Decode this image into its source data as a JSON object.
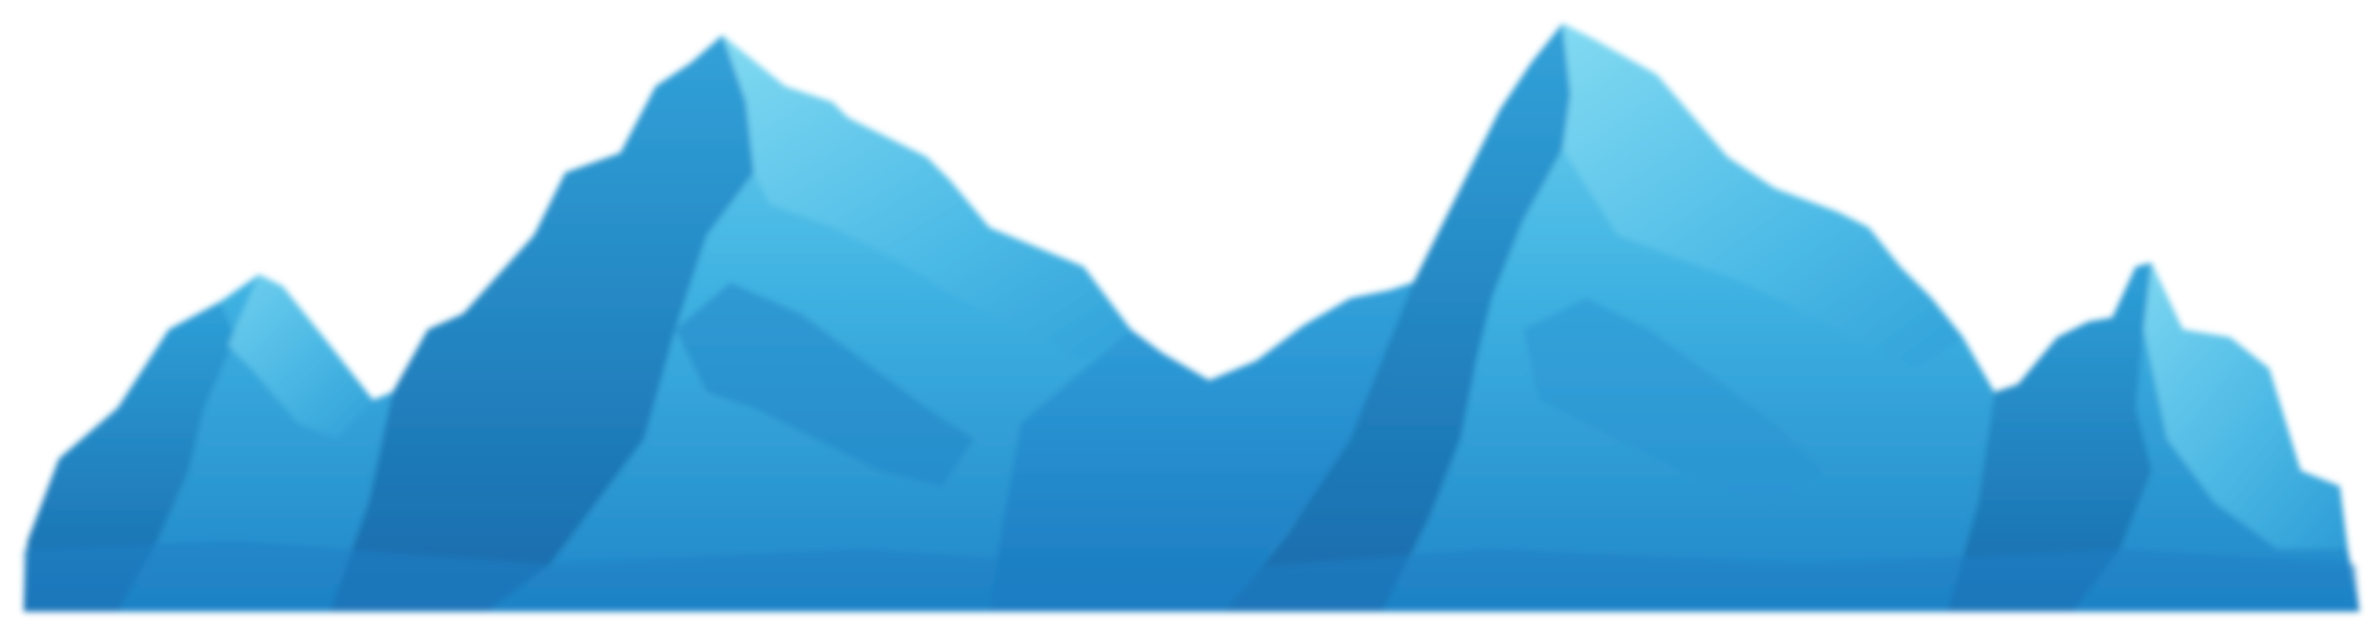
{
  "image": {
    "subject": "mountain-range-illustration",
    "colors": {
      "background": "#ffffff",
      "light_ice": "#76d6f0",
      "mid_blue": "#3aaee0",
      "deep_blue": "#1a7fc0",
      "shadow_blue": "#1d6fb0",
      "base_blue": "#2b8fd4"
    }
  }
}
